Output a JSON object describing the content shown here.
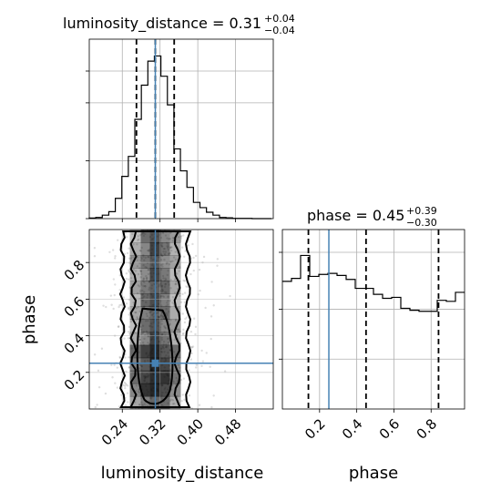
{
  "chart_data": {
    "type": "corner",
    "parameters": [
      "luminosity_distance",
      "phase"
    ],
    "truth": {
      "luminosity_distance": 0.31,
      "phase": 0.25,
      "color": "#4682b4"
    },
    "luminosity_distance": {
      "title": {
        "text": "luminosity_distance = 0.31",
        "sup": "+0.04",
        "sub": "−0.04"
      },
      "xlabel": "luminosity_distance",
      "xlim": [
        0.17,
        0.56
      ],
      "ticks": [
        0.24,
        0.32,
        0.4,
        0.48
      ],
      "tick_labels": [
        "0.24",
        "0.32",
        "0.40",
        "0.48"
      ],
      "quantiles": [
        0.27,
        0.31,
        0.35
      ],
      "hist": {
        "edges": [
          0.17,
          0.1838,
          0.1976,
          0.2114,
          0.2252,
          0.239,
          0.2528,
          0.2666,
          0.2804,
          0.2942,
          0.308,
          0.3218,
          0.3356,
          0.3494,
          0.3632,
          0.377,
          0.3908,
          0.4046,
          0.4184,
          0.4322,
          0.446,
          0.4598,
          0.4736,
          0.4874,
          0.5012,
          0.515,
          0.5288,
          0.5426,
          0.5564
        ],
        "counts": [
          0.002,
          0.004,
          0.012,
          0.024,
          0.07,
          0.146,
          0.215,
          0.343,
          0.461,
          0.544,
          0.562,
          0.492,
          0.393,
          0.241,
          0.165,
          0.108,
          0.056,
          0.038,
          0.022,
          0.012,
          0.004,
          0.003,
          0.001,
          0.001,
          0.001,
          0.0,
          0.0,
          0.0
        ]
      },
      "ylim": [
        0,
        0.62
      ]
    },
    "phase": {
      "title": {
        "text": "phase = 0.45",
        "sup": "+0.39",
        "sub": "−0.30"
      },
      "xlabel": "phase",
      "ylabel": "phase",
      "xlim": [
        0.0,
        0.98
      ],
      "ticks": [
        0.2,
        0.4,
        0.6,
        0.8
      ],
      "tick_labels": [
        "0.2",
        "0.4",
        "0.6",
        "0.8"
      ],
      "quantiles": [
        0.14,
        0.45,
        0.84
      ],
      "hist": {
        "edges": [
          0.0,
          0.049,
          0.098,
          0.147,
          0.196,
          0.245,
          0.294,
          0.343,
          0.392,
          0.441,
          0.49,
          0.539,
          0.588,
          0.637,
          0.686,
          0.735,
          0.784,
          0.833,
          0.882,
          0.931,
          0.98
        ],
        "counts": [
          0.128,
          0.131,
          0.154,
          0.133,
          0.135,
          0.136,
          0.134,
          0.13,
          0.121,
          0.121,
          0.115,
          0.111,
          0.112,
          0.101,
          0.099,
          0.098,
          0.098,
          0.109,
          0.108,
          0.117
        ]
      },
      "ylim": [
        0.0,
        0.18
      ]
    },
    "joint": {
      "xlim": [
        0.17,
        0.56
      ],
      "ylim": [
        0.0,
        0.98
      ],
      "yticks": [
        0.2,
        0.4,
        0.6,
        0.8
      ],
      "ytick_labels": [
        "0.2",
        "0.4",
        "0.6",
        "0.8"
      ],
      "contour_levels": [
        "outer",
        "middle",
        "inner"
      ]
    }
  }
}
